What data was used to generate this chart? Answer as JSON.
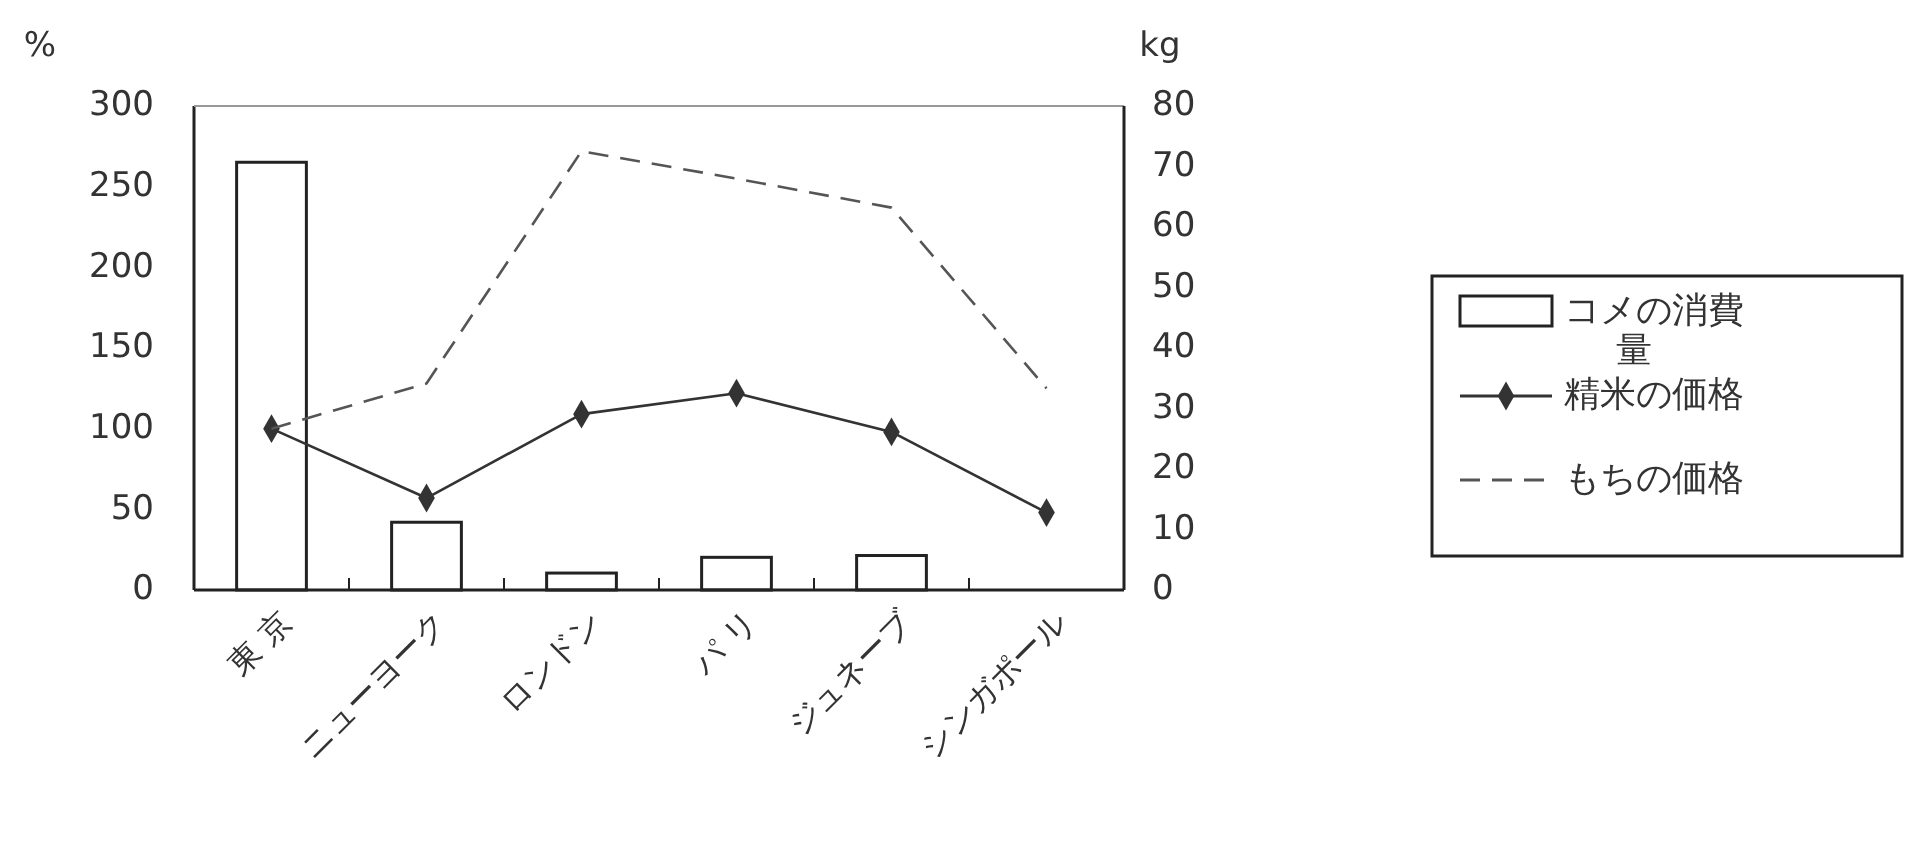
{
  "chart_data": {
    "type": "bar",
    "ylabel": "%",
    "y2label": "kg",
    "categories": [
      "東 京",
      "ニューヨーク",
      "ロンドン",
      "パ リ",
      "ジュネーブ",
      "シンガポール"
    ],
    "series": [
      {
        "name": "コメの消費量",
        "axis": "y2",
        "color": "#ffffff",
        "values": [
          70.7,
          11.2,
          2.8,
          5.4,
          5.7,
          null
        ]
      },
      {
        "name": "精米の価格",
        "type": "line",
        "color": "#333333",
        "marker": "diamond",
        "line_style": "solid",
        "values": [
          100,
          57,
          109,
          122,
          98,
          48
        ]
      },
      {
        "name": "もちの価格",
        "type": "line",
        "color": "#555555",
        "marker": "none",
        "line_style": "dashed",
        "values": [
          100,
          128,
          272,
          255,
          237,
          125
        ]
      }
    ],
    "ylim": [
      0,
      300
    ],
    "yticks": [
      0,
      50,
      100,
      150,
      200,
      250,
      300
    ],
    "y2lim": [
      0,
      80
    ],
    "y2ticks": [
      0,
      10,
      20,
      30,
      40,
      50,
      60,
      70,
      80
    ],
    "grid": false,
    "legend": "right"
  }
}
